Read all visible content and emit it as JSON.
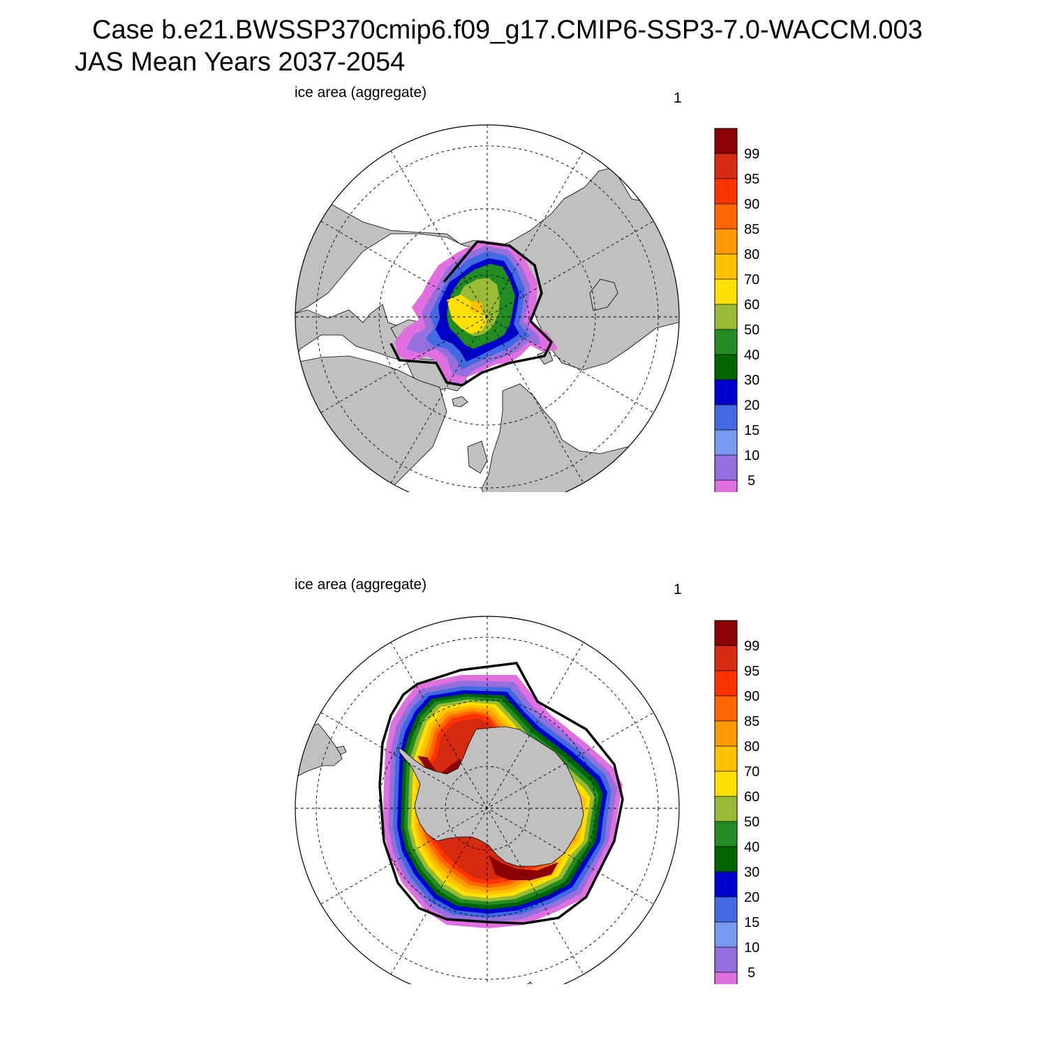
{
  "figure": {
    "title_line1": "Case b.e21.BWSSP370cmip6.f09_g17.CMIP6-SSP3-7.0-WACCM.003",
    "title_line2": "JAS Mean   Years 2037-2054"
  },
  "colorbar": {
    "labels": [
      "99",
      "95",
      "90",
      "85",
      "80",
      "70",
      "60",
      "50",
      "40",
      "30",
      "20",
      "15",
      "10",
      "5"
    ],
    "colors": [
      "#8b0000",
      "#d42a0f",
      "#ff3300",
      "#ff6600",
      "#ff9900",
      "#ffc000",
      "#ffe000",
      "#99bb33",
      "#228b22",
      "#006400",
      "#0000cd",
      "#4169e1",
      "#7799ee",
      "#9370db",
      "#e070e0"
    ]
  },
  "map_colors": {
    "land": "#c0c0c0",
    "ocean": "#ffffff",
    "edge_contour": "#000000"
  },
  "panels": [
    {
      "id": "north",
      "hemisphere": "Northern",
      "left_label": "ice area  (aggregate)",
      "right_label": "1"
    },
    {
      "id": "south",
      "hemisphere": "Southern",
      "left_label": "ice area  (aggregate)",
      "right_label": "1"
    }
  ]
}
